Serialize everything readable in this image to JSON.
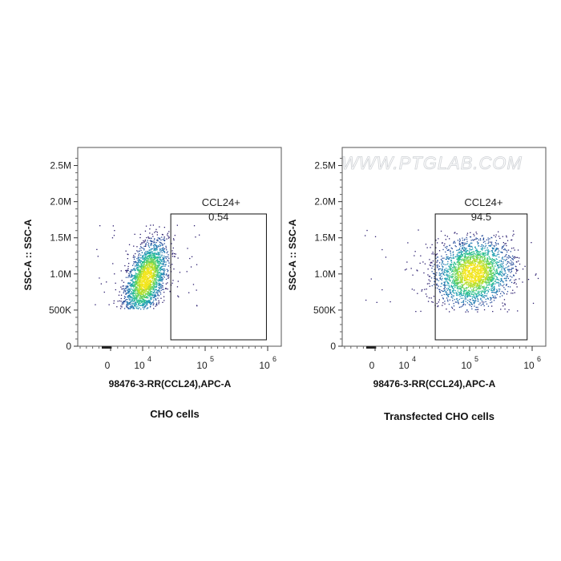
{
  "chart_data": [
    {
      "type": "scatter",
      "subtype": "flow-cytometry-density-plot",
      "caption": "CHO cells",
      "xlabel": "98476-3-RR(CCL24),APC-A",
      "ylabel": "SSC-A :: SSC-A",
      "y_ticks": [
        "0",
        "500K",
        "1.0M",
        "1.5M",
        "2.0M",
        "2.5M"
      ],
      "y_tick_values": [
        0,
        500000,
        1000000,
        1500000,
        2000000,
        2500000
      ],
      "x_ticks": [
        "0",
        "10",
        "10",
        "10"
      ],
      "x_tick_exponents": [
        "",
        "4",
        "5",
        "6"
      ],
      "x_tick_values": [
        0,
        4,
        5,
        6
      ],
      "gate": {
        "name": "CCL24+",
        "percent": "0.54",
        "x_range": [
          4.45,
          5.98
        ],
        "y_range": [
          0,
          1830000
        ]
      },
      "population": {
        "x_center": 4.05,
        "x_spread": 0.17,
        "y_center": 940000,
        "y_spread": 230000,
        "x_min": 3.45,
        "x_max": 4.6,
        "y_min": 520000,
        "y_max": 1700000,
        "n": 2400,
        "tilt": 0.55
      }
    },
    {
      "type": "scatter",
      "subtype": "flow-cytometry-density-plot",
      "caption": "Transfected CHO cells",
      "xlabel": "98476-3-RR(CCL24),APC-A",
      "ylabel": "SSC-A :: SSC-A",
      "y_ticks": [
        "0",
        "500K",
        "1.0M",
        "1.5M",
        "2.0M",
        "2.5M"
      ],
      "y_tick_values": [
        0,
        500000,
        1000000,
        1500000,
        2000000,
        2500000
      ],
      "x_ticks": [
        "0",
        "10",
        "10",
        "10"
      ],
      "x_tick_exponents": [
        "",
        "4",
        "5",
        "6"
      ],
      "x_tick_values": [
        0,
        4,
        5,
        6
      ],
      "gate": {
        "name": "CCL24+",
        "percent": "94.5",
        "x_range": [
          4.45,
          5.92
        ],
        "y_range": [
          0,
          1830000
        ]
      },
      "population": {
        "x_center": 5.05,
        "x_spread": 0.3,
        "y_center": 1020000,
        "y_spread": 230000,
        "x_min": 3.6,
        "x_max": 5.8,
        "y_min": 480000,
        "y_max": 1620000,
        "n": 2600,
        "tilt": 0.1
      }
    }
  ],
  "watermark": "WWW.PTGLAB.COM"
}
